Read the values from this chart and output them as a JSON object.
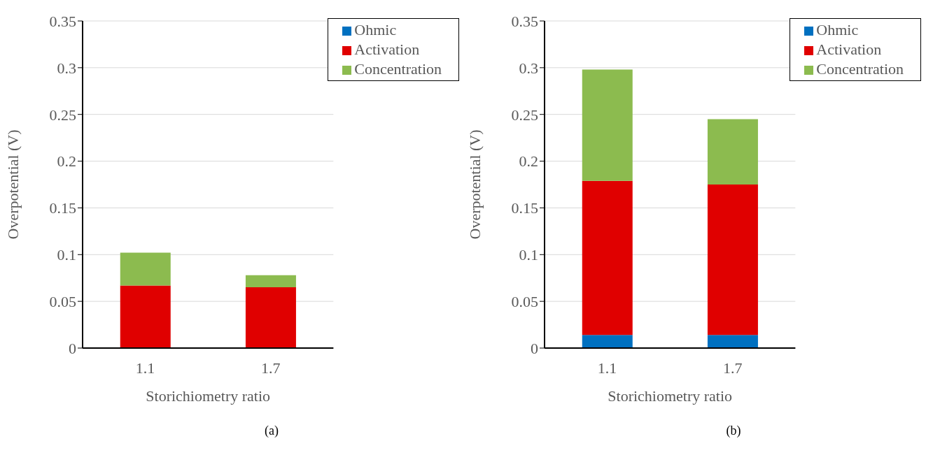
{
  "chart_data": [
    {
      "type": "bar",
      "title": "(a)",
      "xlabel": "Storichiometry ratio",
      "ylabel": "Overpotential (V)",
      "categories": [
        "1.1",
        "1.7"
      ],
      "stacked": true,
      "series": [
        {
          "name": "Ohmic",
          "color": "#0070c0",
          "values": [
            null,
            null
          ]
        },
        {
          "name": "Activation",
          "color": "#e00000",
          "values": [
            0.067,
            0.065
          ]
        },
        {
          "name": "Concentration",
          "color": "#8cbb4f",
          "values": [
            0.035,
            0.013
          ]
        }
      ],
      "ylim": [
        0,
        0.35
      ],
      "yticks": [
        0,
        0.05,
        0.1,
        0.15,
        0.2,
        0.25,
        0.3,
        0.35
      ],
      "grid": "y",
      "legend": "top right"
    },
    {
      "type": "bar",
      "title": "(b)",
      "xlabel": "Storichiometry ratio",
      "ylabel": "Overpotential (V)",
      "categories": [
        "1.1",
        "1.7"
      ],
      "stacked": true,
      "series": [
        {
          "name": "Ohmic",
          "color": "#0070c0",
          "values": [
            0.014,
            0.014
          ]
        },
        {
          "name": "Activation",
          "color": "#e00000",
          "values": [
            0.165,
            0.161
          ]
        },
        {
          "name": "Concentration",
          "color": "#8cbb4f",
          "values": [
            0.119,
            0.07
          ]
        }
      ],
      "ylim": [
        0,
        0.35
      ],
      "yticks": [
        0,
        0.05,
        0.1,
        0.15,
        0.2,
        0.25,
        0.3,
        0.35
      ],
      "grid": "y",
      "legend": "top right"
    }
  ]
}
